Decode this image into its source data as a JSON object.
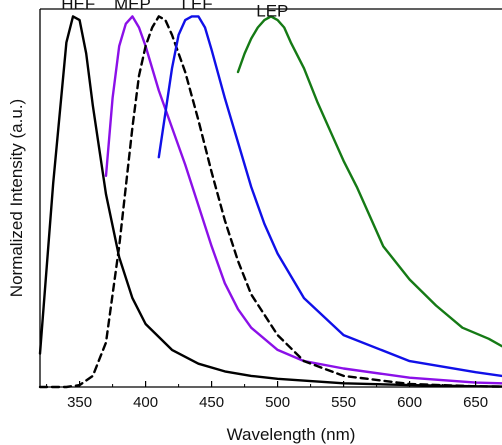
{
  "chart_data": {
    "type": "line",
    "title": "",
    "xlabel": "Wavelength (nm)",
    "ylabel": "Normalized Intensity (a.u.)",
    "xlim": [
      320,
      670
    ],
    "ylim": [
      0,
      1.02
    ],
    "x_ticks": [
      350,
      400,
      450,
      500,
      550,
      600,
      650
    ],
    "y_tick_labels": "none",
    "grid": false,
    "legend": "none",
    "series": [
      {
        "name": "HEF",
        "color": "#000000",
        "dash": "solid",
        "x": [
          320,
          330,
          340,
          345,
          350,
          355,
          360,
          370,
          380,
          390,
          400,
          420,
          440,
          460,
          480,
          500,
          550,
          600,
          650,
          670
        ],
        "y": [
          0.09,
          0.55,
          0.93,
          1.0,
          0.99,
          0.9,
          0.76,
          0.52,
          0.35,
          0.24,
          0.17,
          0.1,
          0.063,
          0.042,
          0.03,
          0.022,
          0.01,
          0.005,
          0.002,
          0.001
        ]
      },
      {
        "name": "MEP",
        "color": "#8B10E8",
        "dash": "solid",
        "x": [
          370,
          375,
          380,
          385,
          390,
          395,
          400,
          410,
          420,
          430,
          440,
          450,
          460,
          470,
          480,
          500,
          520,
          550,
          600,
          650,
          670
        ],
        "y": [
          0.57,
          0.78,
          0.92,
          0.98,
          1.0,
          0.97,
          0.92,
          0.8,
          0.7,
          0.6,
          0.49,
          0.38,
          0.28,
          0.21,
          0.16,
          0.1,
          0.07,
          0.05,
          0.025,
          0.012,
          0.01
        ]
      },
      {
        "name": "",
        "color": "#000000",
        "dash": "dashed",
        "x": [
          320,
          340,
          350,
          360,
          370,
          380,
          390,
          395,
          400,
          405,
          410,
          415,
          420,
          430,
          440,
          450,
          460,
          470,
          480,
          500,
          520,
          550,
          600,
          650,
          670
        ],
        "y": [
          0.0,
          0.0,
          0.005,
          0.03,
          0.12,
          0.38,
          0.7,
          0.84,
          0.92,
          0.97,
          1.0,
          0.99,
          0.95,
          0.85,
          0.72,
          0.58,
          0.45,
          0.34,
          0.25,
          0.14,
          0.07,
          0.03,
          0.008,
          0.002,
          0.001
        ]
      },
      {
        "name": "LEF",
        "color": "#1010E8",
        "dash": "solid",
        "x": [
          410,
          415,
          420,
          425,
          430,
          435,
          440,
          445,
          450,
          460,
          470,
          480,
          490,
          500,
          520,
          550,
          600,
          650,
          670
        ],
        "y": [
          0.62,
          0.74,
          0.86,
          0.95,
          0.99,
          1.0,
          1.0,
          0.97,
          0.91,
          0.78,
          0.66,
          0.54,
          0.44,
          0.36,
          0.24,
          0.14,
          0.07,
          0.04,
          0.03
        ]
      },
      {
        "name": "LEP",
        "color": "#157A15",
        "dash": "solid",
        "x": [
          470,
          475,
          480,
          485,
          490,
          495,
          500,
          505,
          510,
          520,
          530,
          540,
          550,
          560,
          570,
          580,
          600,
          620,
          640,
          660,
          670
        ],
        "y": [
          0.85,
          0.9,
          0.94,
          0.97,
          0.99,
          1.0,
          0.99,
          0.97,
          0.93,
          0.86,
          0.77,
          0.69,
          0.61,
          0.54,
          0.46,
          0.38,
          0.29,
          0.22,
          0.16,
          0.13,
          0.11
        ]
      }
    ],
    "annotations": [
      {
        "text": "HEF",
        "x": 349,
        "y": 1.03
      },
      {
        "text": "MEP",
        "x": 390,
        "y": 1.03
      },
      {
        "text": "LEF",
        "x": 439,
        "y": 1.03
      },
      {
        "text": "LEP",
        "x": 496,
        "y": 1.01
      }
    ]
  }
}
